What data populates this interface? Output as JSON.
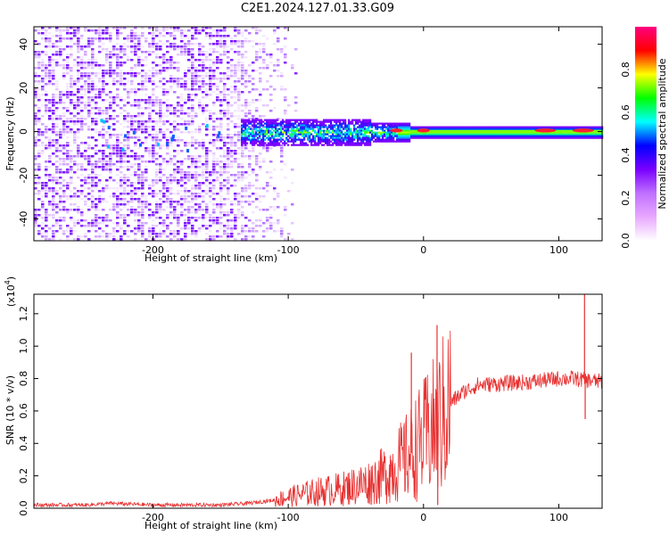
{
  "title": "C2E1.2024.127.01.33.G09",
  "chart_data": [
    {
      "type": "heatmap",
      "xlabel": "Height of straight line (km)",
      "ylabel": "Frequency (Hz)",
      "xlim": [
        -288,
        132
      ],
      "ylim": [
        -50,
        48
      ],
      "x_ticks": [
        -200,
        -100,
        0,
        100
      ],
      "y_ticks": [
        -40,
        -20,
        0,
        20,
        40
      ],
      "colorbar": {
        "label": "Normalized spectral amplitude",
        "range": [
          0,
          1
        ],
        "ticks": [
          0.0,
          0.2,
          0.4,
          0.6,
          0.8
        ],
        "colors": [
          "#ffffff",
          "#e8a8ff",
          "#c070ff",
          "#7a00ff",
          "#0000ff",
          "#00ffff",
          "#00ff00",
          "#ffff00",
          "#ff0000",
          "#ff0080"
        ]
      },
      "description_of_features": {
        "broadband_noise_x_range": [
          -288,
          -95
        ],
        "narrow_signal_center_hz": 0,
        "narrow_signal_x_range": [
          -135,
          132
        ],
        "red_hotspots_x": [
          -20,
          0,
          90,
          118
        ]
      }
    },
    {
      "type": "line",
      "xlabel": "Height of straight line (km)",
      "ylabel": "SNR (10 * v/v)",
      "y_multiplier": "(x10",
      "y_multiplier_exp": "4",
      "xlim": [
        -288,
        132
      ],
      "ylim": [
        0,
        1.32
      ],
      "x_ticks": [
        -200,
        -100,
        0,
        100
      ],
      "y_ticks": [
        0.0,
        0.2,
        0.4,
        0.6,
        0.8,
        1.0,
        1.2
      ],
      "series_color": "#e83030",
      "trend_points": [
        [
          -288,
          0.02
        ],
        [
          -250,
          0.02
        ],
        [
          -230,
          0.03
        ],
        [
          -200,
          0.02
        ],
        [
          -150,
          0.02
        ],
        [
          -130,
          0.03
        ],
        [
          -110,
          0.05
        ],
        [
          -100,
          0.07
        ],
        [
          -80,
          0.1
        ],
        [
          -60,
          0.12
        ],
        [
          -40,
          0.16
        ],
        [
          -30,
          0.2
        ],
        [
          -20,
          0.26
        ],
        [
          -10,
          0.33
        ],
        [
          -5,
          0.38
        ],
        [
          0,
          0.42
        ],
        [
          5,
          0.48
        ],
        [
          10,
          0.5
        ],
        [
          15,
          0.58
        ],
        [
          20,
          0.65
        ],
        [
          30,
          0.72
        ],
        [
          40,
          0.76
        ],
        [
          60,
          0.77
        ],
        [
          80,
          0.78
        ],
        [
          100,
          0.8
        ],
        [
          110,
          0.8
        ],
        [
          120,
          0.79
        ],
        [
          132,
          0.78
        ]
      ],
      "spikes": [
        {
          "x": -9,
          "y": 0.96
        },
        {
          "x": 10,
          "y": 1.13
        },
        {
          "x": 10.5,
          "y": 0.02
        },
        {
          "x": 119,
          "y": 1.32
        },
        {
          "x": 119.5,
          "y": 0.55
        }
      ]
    }
  ]
}
